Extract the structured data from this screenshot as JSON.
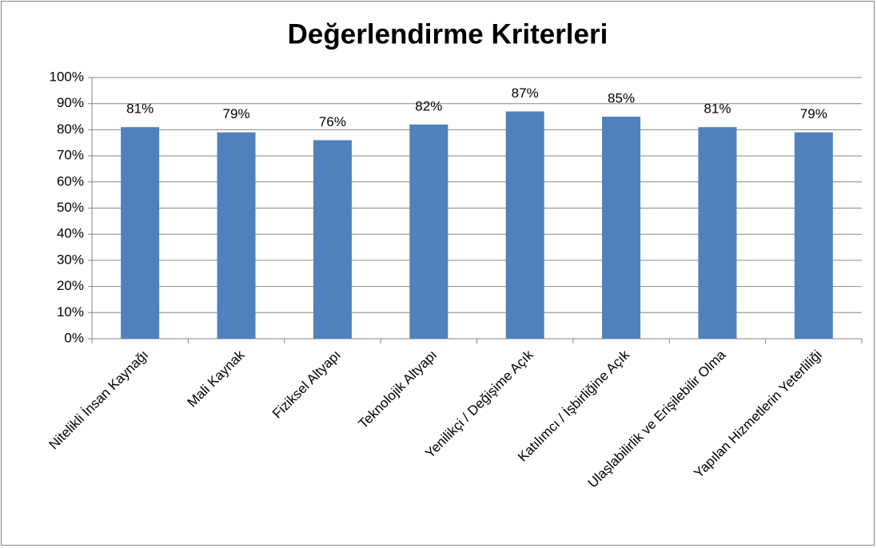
{
  "chart_data": {
    "type": "bar",
    "title": "Değerlendirme Kriterleri",
    "categories": [
      "Nitelikli İnsan Kaynağı",
      "Mali Kaynak",
      "Fiziksel Altyapı",
      "Teknolojik Altyapı",
      "Yenilikçi / Değişime Açık",
      "Katılımcı / İşbirliğine Açık",
      "Ulaşlabilirlik ve Erişilebilir Olma",
      "Yapılan Hizmetlerin Yeterliliği"
    ],
    "values": [
      81,
      79,
      76,
      82,
      87,
      85,
      81,
      79
    ],
    "value_labels": [
      "81%",
      "79%",
      "76%",
      "82%",
      "87%",
      "85%",
      "81%",
      "79%"
    ],
    "color": "#4f81bd",
    "ylim": [
      0,
      100
    ],
    "yticks": [
      {
        "value": 0,
        "label": "0%"
      },
      {
        "value": 10,
        "label": "10%"
      },
      {
        "value": 20,
        "label": "20%"
      },
      {
        "value": 30,
        "label": "30%"
      },
      {
        "value": 40,
        "label": "40%"
      },
      {
        "value": 50,
        "label": "50%"
      },
      {
        "value": 60,
        "label": "60%"
      },
      {
        "value": 70,
        "label": "70%"
      },
      {
        "value": 80,
        "label": "80%"
      },
      {
        "value": 90,
        "label": "90%"
      },
      {
        "value": 100,
        "label": "100%"
      }
    ],
    "grid": true
  }
}
